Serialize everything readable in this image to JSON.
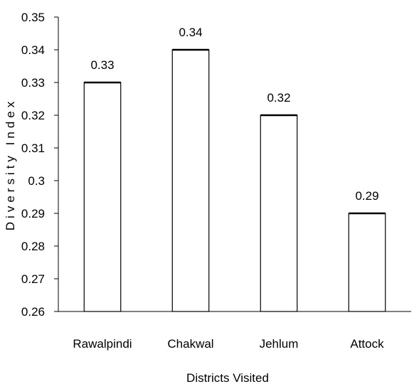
{
  "chart_data": {
    "type": "bar",
    "categories": [
      "Rawalpindi",
      "Chakwal",
      "Jehlum",
      "Attock"
    ],
    "values": [
      0.33,
      0.34,
      0.32,
      0.29
    ],
    "data_labels": [
      "0.33",
      "0.34",
      "0.32",
      "0.29"
    ],
    "y_ticks": [
      "0.26",
      "0.27",
      "0.28",
      "0.29",
      "0.3",
      "0.31",
      "0.32",
      "0.33",
      "0.34",
      "0.35"
    ],
    "ylim": [
      0.26,
      0.35
    ],
    "xlabel": "Districts Visited",
    "ylabel": "Diversity Index",
    "grid": false,
    "legend": "none",
    "bar_fill": "#ffffff",
    "bar_stroke": "#000000"
  }
}
